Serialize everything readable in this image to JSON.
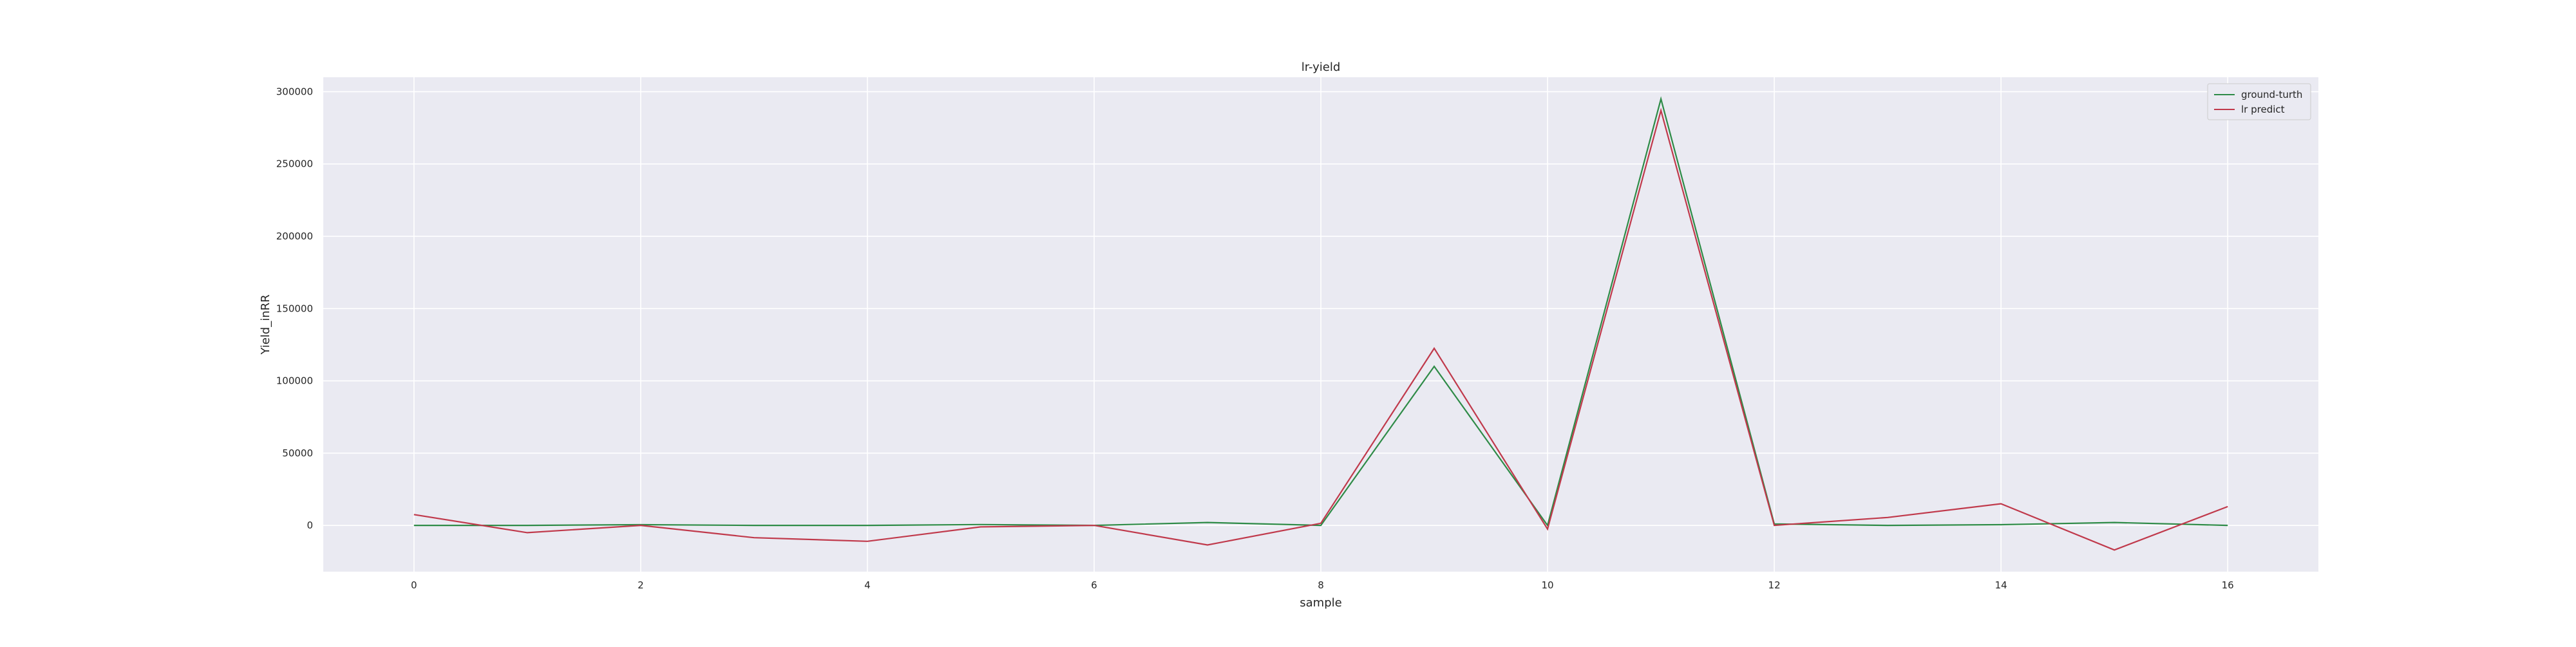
{
  "chart_data": {
    "type": "line",
    "title": "lr-yield",
    "xlabel": "sample",
    "ylabel": "Yield_inRR",
    "x": [
      0,
      1,
      2,
      3,
      4,
      5,
      6,
      7,
      8,
      9,
      10,
      11,
      12,
      13,
      14,
      15,
      16
    ],
    "xlim": [
      -0.8,
      16.8
    ],
    "ylim": [
      -32000,
      310000
    ],
    "xticks": [
      "0",
      "2",
      "4",
      "6",
      "8",
      "10",
      "12",
      "14",
      "16"
    ],
    "yticks": [
      "0",
      "50000",
      "100000",
      "150000",
      "200000",
      "250000",
      "300000"
    ],
    "grid": true,
    "legend_position": "top-right",
    "series": [
      {
        "name": "ground-turth",
        "color": "#2e8b47",
        "values": [
          0,
          0,
          500,
          0,
          0,
          600,
          0,
          2000,
          0,
          110000,
          0,
          295000,
          1000,
          0,
          500,
          2000,
          0
        ]
      },
      {
        "name": "lr predict",
        "color": "#c0394b",
        "values": [
          7500,
          -5000,
          0,
          -8500,
          -11000,
          -1000,
          0,
          -13500,
          1500,
          122500,
          -2500,
          287000,
          0,
          5500,
          15000,
          -17000,
          13000
        ]
      }
    ]
  }
}
